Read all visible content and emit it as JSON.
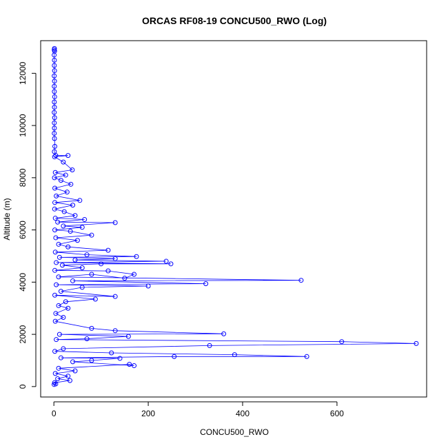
{
  "chart_data": {
    "type": "scatter",
    "title": "ORCAS RF08-19 CONCU500_RWO (Log)",
    "xlabel": "CONCU500_RWO",
    "ylabel": "Altitude (m)",
    "xlim": [
      -28,
      790
    ],
    "ylim": [
      -400,
      13250
    ],
    "x_ticks": [
      0,
      200,
      400,
      600
    ],
    "y_ticks": [
      0,
      2000,
      4000,
      6000,
      8000,
      10000,
      12000
    ],
    "grid": false,
    "legend": "none",
    "series": [
      {
        "color": "#0000ff",
        "marker": "open-circle",
        "line": true,
        "points": [
          [
            1.2,
            12950
          ],
          [
            0.8,
            12900
          ],
          [
            1.5,
            12850
          ],
          [
            0.6,
            12700
          ],
          [
            1.1,
            12500
          ],
          [
            0.9,
            12300
          ],
          [
            1.4,
            12100
          ],
          [
            0.7,
            11900
          ],
          [
            1.3,
            11700
          ],
          [
            0.8,
            11500
          ],
          [
            1.0,
            11300
          ],
          [
            1.6,
            11100
          ],
          [
            0.9,
            10900
          ],
          [
            1.2,
            10700
          ],
          [
            0.7,
            10500
          ],
          [
            1.5,
            10300
          ],
          [
            0.9,
            10100
          ],
          [
            1.1,
            9900
          ],
          [
            0.8,
            9700
          ],
          [
            1.3,
            9500
          ],
          [
            2.0,
            9200
          ],
          [
            1.0,
            9000
          ],
          [
            4.0,
            8850
          ],
          [
            30.0,
            8850
          ],
          [
            1.5,
            8800
          ],
          [
            20.0,
            8600
          ],
          [
            39.0,
            8300
          ],
          [
            3.0,
            8200
          ],
          [
            25.0,
            8100
          ],
          [
            1.2,
            8000
          ],
          [
            15.0,
            7900
          ],
          [
            36.0,
            7750
          ],
          [
            2.0,
            7600
          ],
          [
            28.0,
            7450
          ],
          [
            5.0,
            7300
          ],
          [
            55.0,
            7130
          ],
          [
            2.0,
            7050
          ],
          [
            40.0,
            6950
          ],
          [
            1.5,
            6800
          ],
          [
            22.0,
            6700
          ],
          [
            45.0,
            6550
          ],
          [
            3.0,
            6450
          ],
          [
            65.0,
            6400
          ],
          [
            8.0,
            6300
          ],
          [
            130.0,
            6280
          ],
          [
            20.0,
            6150
          ],
          [
            60.0,
            6100
          ],
          [
            2.0,
            6000
          ],
          [
            35.0,
            5950
          ],
          [
            80.0,
            5800
          ],
          [
            4.0,
            5700
          ],
          [
            50.0,
            5600
          ],
          [
            10.0,
            5450
          ],
          [
            30.0,
            5350
          ],
          [
            115.0,
            5220
          ],
          [
            3.0,
            5150
          ],
          [
            70.0,
            5050
          ],
          [
            175.0,
            4980
          ],
          [
            12.0,
            4950
          ],
          [
            130.0,
            4900
          ],
          [
            45.0,
            4850
          ],
          [
            238.0,
            4800
          ],
          [
            5.0,
            4750
          ],
          [
            248.0,
            4700
          ],
          [
            100.0,
            4700
          ],
          [
            18.0,
            4650
          ],
          [
            60.0,
            4550
          ],
          [
            2.0,
            4450
          ],
          [
            115.0,
            4430
          ],
          [
            170.0,
            4300
          ],
          [
            150.0,
            4150
          ],
          [
            80.0,
            4300
          ],
          [
            10.0,
            4200
          ],
          [
            524.0,
            4070
          ],
          [
            40.0,
            4050
          ],
          [
            322.0,
            3940
          ],
          [
            5.0,
            3900
          ],
          [
            200.0,
            3850
          ],
          [
            60.0,
            3800
          ],
          [
            15.0,
            3650
          ],
          [
            130.0,
            3450
          ],
          [
            2.0,
            3500
          ],
          [
            88.0,
            3350
          ],
          [
            25.0,
            3250
          ],
          [
            10.0,
            3100
          ],
          [
            30.0,
            3000
          ],
          [
            4.0,
            2800
          ],
          [
            20.0,
            2650
          ],
          [
            3.0,
            2500
          ],
          [
            80.0,
            2230
          ],
          [
            130.0,
            2140
          ],
          [
            360.0,
            2020
          ],
          [
            12.0,
            2000
          ],
          [
            158.0,
            1920
          ],
          [
            70.0,
            1830
          ],
          [
            5.0,
            1800
          ],
          [
            610.0,
            1720
          ],
          [
            768.0,
            1650
          ],
          [
            330.0,
            1570
          ],
          [
            20.0,
            1450
          ],
          [
            2.0,
            1350
          ],
          [
            122.0,
            1290
          ],
          [
            383.0,
            1220
          ],
          [
            536.0,
            1150
          ],
          [
            255.0,
            1150
          ],
          [
            15.0,
            1100
          ],
          [
            140.0,
            1080
          ],
          [
            80.0,
            1000
          ],
          [
            40.0,
            950
          ],
          [
            170.0,
            800
          ],
          [
            160.0,
            850
          ],
          [
            10.0,
            700
          ],
          [
            45.0,
            600
          ],
          [
            3.0,
            500
          ],
          [
            30.0,
            400
          ],
          [
            8.0,
            300
          ],
          [
            34.0,
            230
          ],
          [
            1.5,
            150
          ],
          [
            4.0,
            100
          ],
          [
            0.5,
            80
          ]
        ]
      }
    ]
  }
}
